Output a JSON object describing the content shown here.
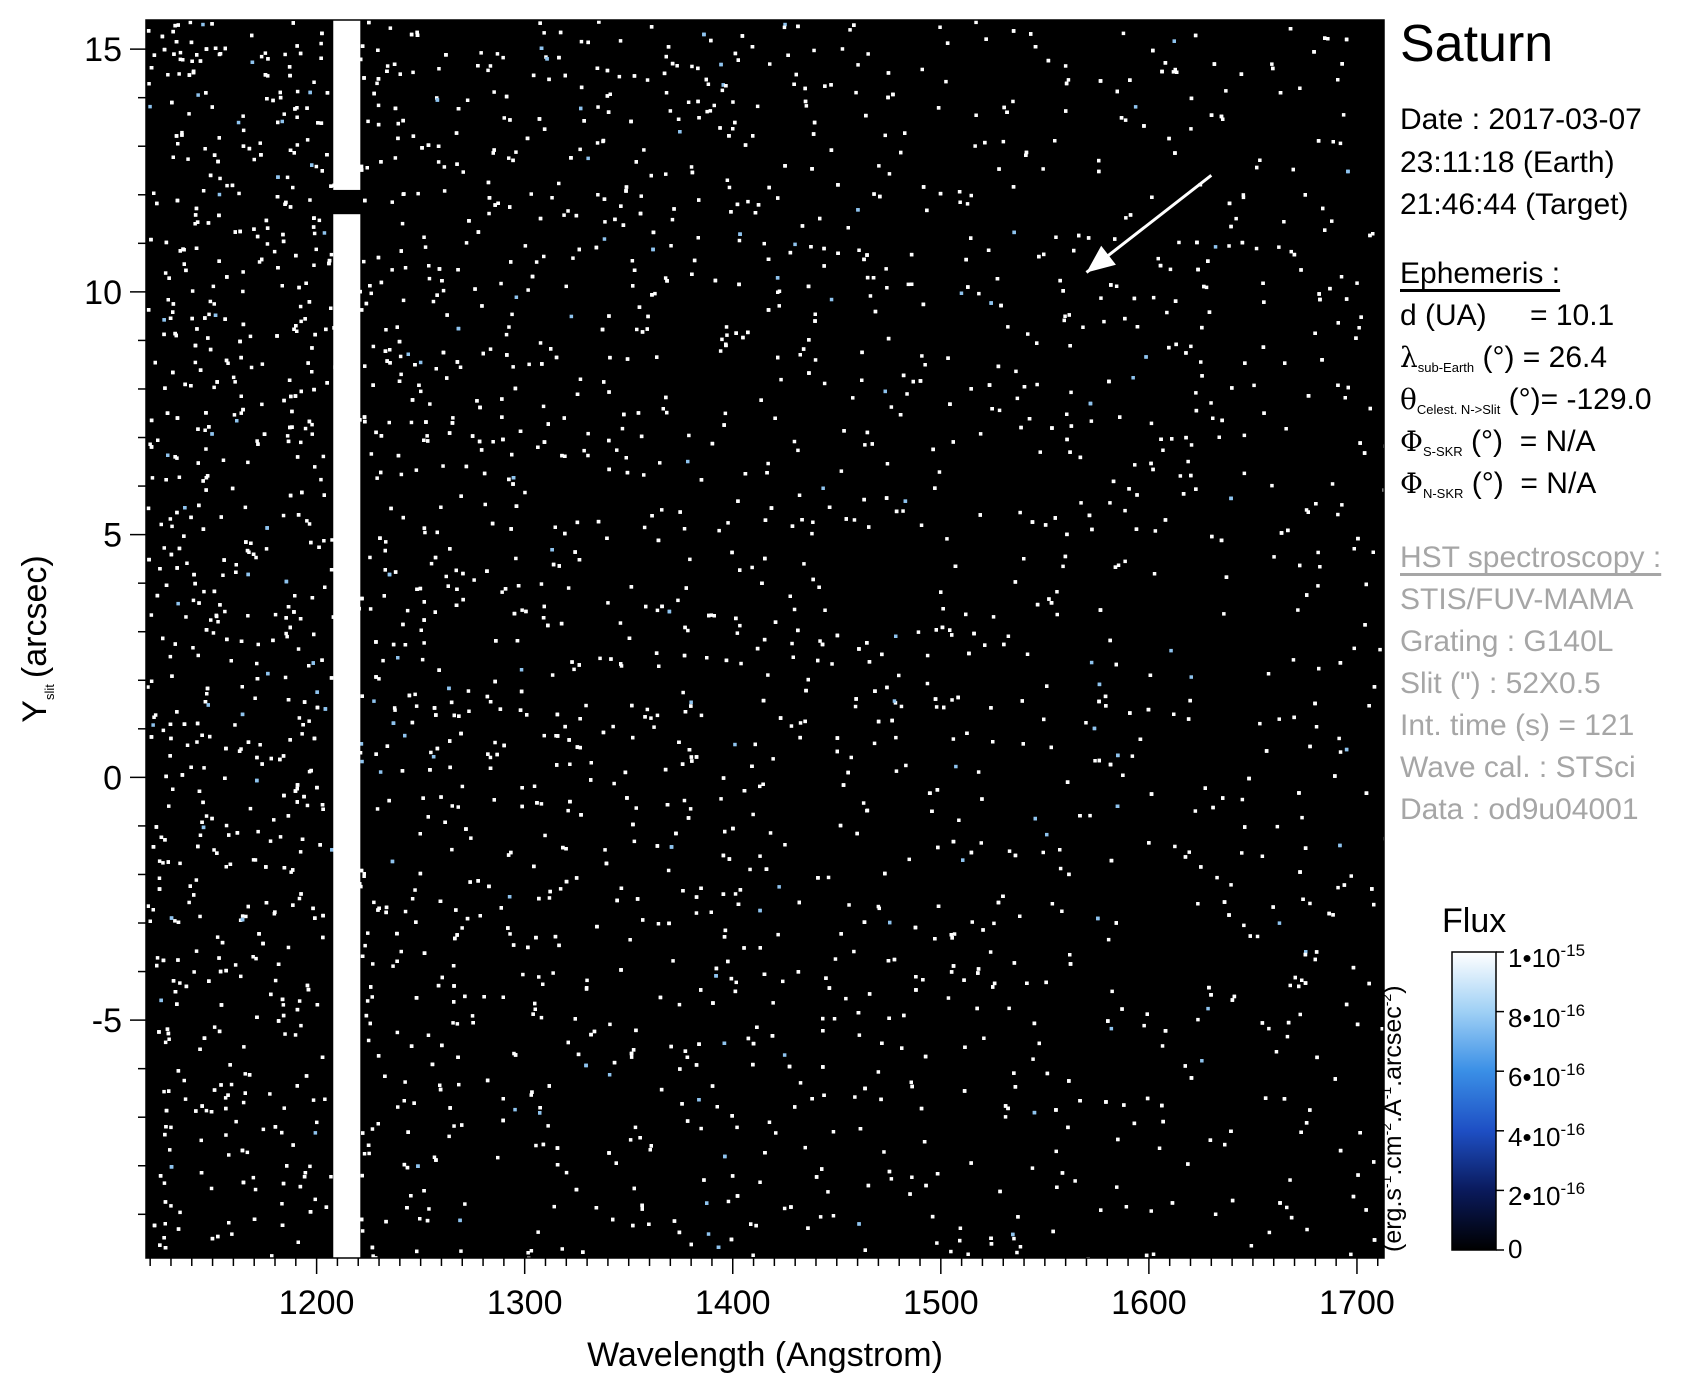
{
  "chart_data": {
    "type": "heatmap",
    "title": "",
    "xlabel": "Wavelength (Angstrom)",
    "ylabel": "Y",
    "ylabel_subscript": "slit",
    "ylabel_unit": "(arcsec)",
    "xlim": [
      1118,
      1713
    ],
    "ylim": [
      -9.9,
      15.6
    ],
    "x_ticks": [
      1200,
      1300,
      1400,
      1500,
      1600,
      1700
    ],
    "y_ticks": [
      -5,
      0,
      5,
      10,
      15
    ],
    "x_tick_labels": [
      "1200",
      "1300",
      "1400",
      "1500",
      "1600",
      "1700"
    ],
    "y_tick_labels": [
      "-5",
      "0",
      "5",
      "10",
      "15"
    ],
    "x_minor_step": 10,
    "y_minor_step": 1,
    "bright_line": {
      "wavelength_start": 1208,
      "wavelength_end": 1221,
      "gap_y": [
        11.6,
        12.1
      ]
    },
    "annotation": {
      "type": "arrow",
      "from": [
        1630,
        12.4
      ],
      "to": [
        1570,
        10.4
      ]
    },
    "colorbar": {
      "title": "Flux",
      "unit_text": "(erg.s-1.cm-2.A-1.arcsec-2)",
      "min": 0,
      "max": 1e-15,
      "ticks": [
        {
          "value": 1e-15,
          "mant": "1•10",
          "exp": "-15"
        },
        {
          "value": 8e-16,
          "mant": "8•10",
          "exp": "-16"
        },
        {
          "value": 6e-16,
          "mant": "6•10",
          "exp": "-16"
        },
        {
          "value": 4e-16,
          "mant": "4•10",
          "exp": "-16"
        },
        {
          "value": 2e-16,
          "mant": "2•10",
          "exp": "-16"
        },
        {
          "value": 0,
          "mant": "0",
          "exp": ""
        }
      ],
      "colors": [
        "#000000",
        "#0a1a5c",
        "#1e4fc4",
        "#3a8fe6",
        "#9fd0f5",
        "#ffffff"
      ]
    },
    "background_color": "#000000",
    "point_color": "#ffffff"
  },
  "panel": {
    "target": "Saturn",
    "date": "Date : 2017-03-07",
    "time_earth": "23:11:18 (Earth)",
    "time_target": "21:46:44 (Target)",
    "ephemeris_header": "Ephemeris :",
    "ephemeris": {
      "d_label": "d (UA)",
      "d_value": "= 10.1",
      "lambda_sym": "λ",
      "lambda_sub": "sub-Earth",
      "lambda_unit": "(°)",
      "lambda_value": "= 26.4",
      "theta_sym": "θ",
      "theta_sub": "Celest. N->Slit",
      "theta_unit": "(°)",
      "theta_value": "= -129.0",
      "phis_sym": "Φ",
      "phis_sub": "S-SKR",
      "phis_unit": "(°)",
      "phis_value": "= N/A",
      "phin_sym": "Φ",
      "phin_sub": "N-SKR",
      "phin_unit": "(°)",
      "phin_value": "= N/A"
    },
    "hst_header": "HST spectroscopy :",
    "instrument": "STIS/FUV-MAMA",
    "grating": "Grating : G140L",
    "slit": "Slit (\") : 52X0.5",
    "int_time": "Int. time (s) = 121",
    "wave_cal": "Wave cal. : STSci",
    "data_id": "Data : od9u04001"
  }
}
